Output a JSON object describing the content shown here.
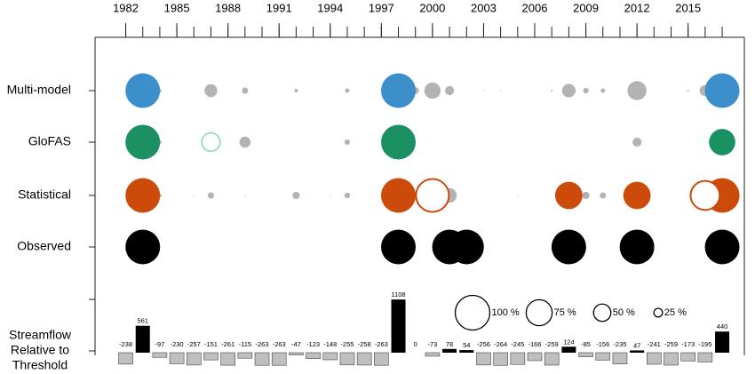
{
  "chart_data": {
    "type": "bubble",
    "x": [
      1982,
      1983,
      1984,
      1985,
      1986,
      1987,
      1988,
      1989,
      1990,
      1991,
      1992,
      1993,
      1994,
      1995,
      1996,
      1997,
      1998,
      1999,
      2000,
      2001,
      2002,
      2003,
      2004,
      2005,
      2006,
      2007,
      2008,
      2009,
      2010,
      2011,
      2012,
      2013,
      2014,
      2015,
      2016,
      2017
    ],
    "xlim": [
      1980.2,
      2018.3
    ],
    "xticks": [
      1982,
      1985,
      1988,
      1991,
      1994,
      1997,
      2000,
      2003,
      2006,
      2009,
      2012,
      2015
    ],
    "miss_color": "#b3b3b3",
    "series": [
      {
        "name": "Multi-model",
        "color": "#3d8fcc",
        "hollow_color": "#3d8fcc",
        "values": [
          null,
          100,
          10,
          null,
          null,
          37,
          null,
          18,
          null,
          null,
          10,
          null,
          null,
          13,
          null,
          null,
          100,
          20,
          47,
          26,
          null,
          3,
          3,
          null,
          null,
          5,
          39,
          16,
          13,
          null,
          55,
          null,
          null,
          5,
          32,
          100
        ],
        "markers": [
          null,
          "filled",
          "grey",
          null,
          null,
          "grey",
          null,
          "grey",
          null,
          null,
          "grey",
          null,
          null,
          "grey",
          null,
          null,
          "filled",
          "grey",
          "grey",
          "grey",
          null,
          "grey",
          "grey",
          null,
          null,
          "grey",
          "grey",
          "grey",
          "grey",
          null,
          "grey",
          null,
          null,
          "grey",
          "grey",
          "filled"
        ]
      },
      {
        "name": "GloFAS",
        "color": "#1b9163",
        "hollow_color": "#9fdcca",
        "values": [
          null,
          100,
          10,
          null,
          null,
          53,
          null,
          32,
          null,
          null,
          null,
          null,
          null,
          16,
          null,
          null,
          100,
          null,
          null,
          null,
          null,
          null,
          null,
          null,
          null,
          null,
          null,
          null,
          null,
          null,
          26,
          null,
          null,
          null,
          null,
          76
        ],
        "markers": [
          null,
          "filled",
          "grey",
          null,
          null,
          "hollow",
          null,
          "grey",
          null,
          null,
          null,
          null,
          null,
          "grey",
          null,
          null,
          "filled",
          null,
          null,
          null,
          null,
          null,
          null,
          null,
          null,
          null,
          null,
          null,
          null,
          null,
          "grey",
          null,
          null,
          null,
          null,
          "filled"
        ]
      },
      {
        "name": "Statistical",
        "color": "#cc4a0a",
        "hollow_color": "#cc4a0a",
        "values": [
          null,
          100,
          10,
          null,
          3,
          18,
          null,
          3,
          null,
          null,
          21,
          null,
          3,
          16,
          null,
          null,
          100,
          null,
          95,
          42,
          null,
          null,
          null,
          3,
          null,
          null,
          79,
          21,
          18,
          null,
          79,
          null,
          null,
          null,
          84,
          100
        ],
        "markers": [
          null,
          "filled",
          "grey",
          null,
          "grey",
          "grey",
          null,
          "grey",
          null,
          null,
          "grey",
          null,
          "grey",
          "grey",
          null,
          null,
          "filled",
          null,
          "hollow",
          "grey",
          null,
          null,
          null,
          "grey",
          null,
          null,
          "filled",
          "grey",
          "grey",
          null,
          "filled",
          null,
          null,
          null,
          "hollow",
          "filled"
        ]
      },
      {
        "name": "Observed",
        "color": "#000000",
        "hollow_color": "#000000",
        "values": [
          null,
          100,
          null,
          null,
          null,
          null,
          null,
          null,
          null,
          null,
          null,
          null,
          null,
          null,
          null,
          null,
          100,
          null,
          null,
          100,
          100,
          null,
          null,
          null,
          null,
          null,
          100,
          null,
          null,
          null,
          100,
          null,
          null,
          null,
          null,
          100
        ],
        "markers": [
          null,
          "filled",
          null,
          null,
          null,
          null,
          null,
          null,
          null,
          null,
          null,
          null,
          null,
          null,
          null,
          null,
          "filled",
          null,
          null,
          "filled",
          "filled",
          null,
          null,
          null,
          null,
          null,
          "filled",
          null,
          null,
          null,
          "filled",
          null,
          null,
          null,
          null,
          "filled"
        ]
      }
    ],
    "size_legend": [
      {
        "value": 100,
        "label": "100 %"
      },
      {
        "value": 75,
        "label": "75 %"
      },
      {
        "value": 50,
        "label": "50 %"
      },
      {
        "value": 25,
        "label": "25 %"
      }
    ],
    "bars": {
      "label": [
        "Streamflow",
        "Relative to",
        "Threshold"
      ],
      "positive_color": "#000000",
      "negative_color": "#bfbfbf",
      "values": [
        -238,
        561,
        -97,
        -230,
        -257,
        -151,
        -261,
        -115,
        -263,
        -263,
        -47,
        -123,
        -148,
        -255,
        -258,
        -263,
        1108,
        0,
        -73,
        78,
        54,
        -256,
        -264,
        -245,
        -166,
        -259,
        124,
        -85,
        -156,
        -235,
        47,
        -241,
        -259,
        -173,
        -195,
        440
      ]
    }
  }
}
